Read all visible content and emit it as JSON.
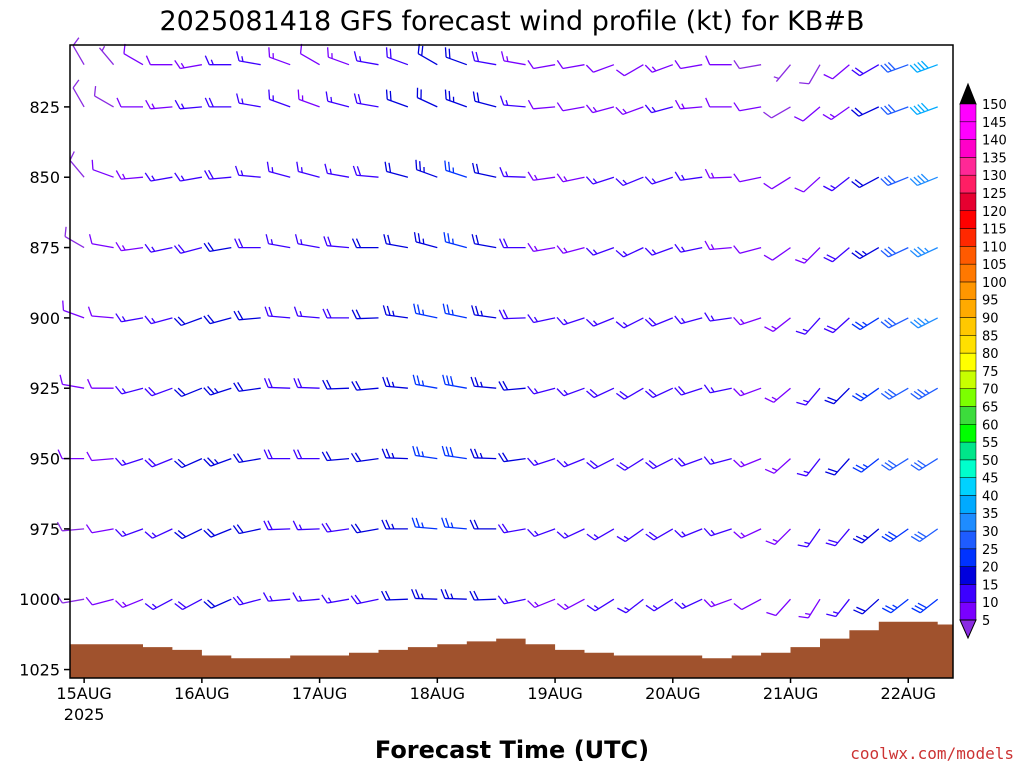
{
  "title": "2025081418 GFS forecast wind profile (kt) for KB#B",
  "credit": "coolwx.com/models",
  "credit_color": "#cc3333",
  "ground_color": "#a0522d",
  "chart_data": {
    "type": "wind-barb-profile",
    "title": "2025081418 GFS forecast wind profile (kt) for KB#B",
    "xlabel": "Forecast Time (UTC)",
    "ylabel": "",
    "y_scale": "pressure (inverted)",
    "ylim": [
      1028,
      803
    ],
    "xlim": [
      -0.12,
      7.38
    ],
    "x_units": "days after 15AUG 00 UTC",
    "x_ticks": [
      {
        "value": 0,
        "label": "15AUG",
        "sub": "2025"
      },
      {
        "value": 1,
        "label": "16AUG",
        "sub": ""
      },
      {
        "value": 2,
        "label": "17AUG",
        "sub": ""
      },
      {
        "value": 3,
        "label": "18AUG",
        "sub": ""
      },
      {
        "value": 4,
        "label": "19AUG",
        "sub": ""
      },
      {
        "value": 5,
        "label": "20AUG",
        "sub": ""
      },
      {
        "value": 6,
        "label": "21AUG",
        "sub": ""
      },
      {
        "value": 7,
        "label": "22AUG",
        "sub": ""
      }
    ],
    "y_ticks": [
      825,
      850,
      875,
      900,
      925,
      950,
      975,
      1000,
      1025
    ],
    "colorbar": {
      "units": "kt",
      "levels": [
        5,
        10,
        15,
        20,
        25,
        30,
        35,
        40,
        45,
        50,
        55,
        60,
        65,
        70,
        75,
        80,
        85,
        90,
        95,
        100,
        105,
        110,
        115,
        120,
        125,
        130,
        135,
        140,
        145,
        150
      ],
      "colors": [
        "#8a2be2",
        "#7a00ff",
        "#3c00ff",
        "#0000dd",
        "#0033ff",
        "#1e5cff",
        "#1e8cff",
        "#00aaff",
        "#00d2ff",
        "#00ffcc",
        "#00e68a",
        "#00ff00",
        "#3cdc3c",
        "#7cff00",
        "#c8ff00",
        "#ffff00",
        "#ffe000",
        "#ffc800",
        "#ffaa00",
        "#ff9600",
        "#ff7800",
        "#ff5a00",
        "#ff2800",
        "#ff0000",
        "#e60030",
        "#ff1e64",
        "#ff2896",
        "#ff00c8",
        "#ff00ff",
        "#000000"
      ]
    },
    "grid": false,
    "surface_pressure": {
      "x": [
        -0.12,
        0,
        0.25,
        0.5,
        0.75,
        1,
        1.25,
        1.5,
        1.75,
        2,
        2.25,
        2.5,
        2.75,
        3,
        3.25,
        3.5,
        3.75,
        4,
        4.25,
        4.5,
        4.75,
        5,
        5.25,
        5.5,
        5.75,
        6,
        6.25,
        6.5,
        6.75,
        7,
        7.25,
        7.38
      ],
      "p": [
        1016,
        1016,
        1016,
        1017,
        1018,
        1020,
        1021,
        1021,
        1020,
        1020,
        1019,
        1018,
        1017,
        1016,
        1015,
        1014,
        1016,
        1018,
        1019,
        1020,
        1020,
        1020,
        1021,
        1020,
        1019,
        1017,
        1014,
        1011,
        1008,
        1008,
        1009,
        1009
      ]
    },
    "series": [
      {
        "pressure": 810,
        "x": [
          0,
          0.25,
          0.5,
          0.75,
          1,
          1.25,
          1.5,
          1.75,
          2,
          2.25,
          2.5,
          2.75,
          3,
          3.25,
          3.5,
          3.75,
          4,
          4.25,
          4.5,
          4.75,
          5,
          5.25,
          5.5,
          5.75,
          6,
          6.25,
          6.5,
          6.75,
          7,
          7.25
        ],
        "dir": [
          330,
          320,
          300,
          270,
          260,
          270,
          280,
          290,
          300,
          290,
          280,
          290,
          300,
          290,
          280,
          280,
          260,
          260,
          250,
          240,
          250,
          260,
          270,
          260,
          220,
          210,
          230,
          240,
          250,
          250
        ],
        "speed": [
          8,
          6,
          10,
          12,
          14,
          16,
          15,
          14,
          12,
          14,
          16,
          18,
          20,
          22,
          18,
          14,
          10,
          10,
          12,
          12,
          14,
          12,
          10,
          8,
          6,
          8,
          12,
          18,
          30,
          40
        ]
      },
      {
        "pressure": 825,
        "x": [
          0,
          0.25,
          0.5,
          0.75,
          1,
          1.25,
          1.5,
          1.75,
          2,
          2.25,
          2.5,
          2.75,
          3,
          3.25,
          3.5,
          3.75,
          4,
          4.25,
          4.5,
          4.75,
          5,
          5.25,
          5.5,
          5.75,
          6,
          6.25,
          6.5,
          6.75,
          7,
          7.25
        ],
        "dir": [
          330,
          300,
          270,
          265,
          265,
          270,
          280,
          290,
          290,
          285,
          280,
          290,
          295,
          290,
          285,
          275,
          265,
          260,
          255,
          250,
          255,
          265,
          270,
          260,
          240,
          230,
          235,
          245,
          250,
          250
        ],
        "speed": [
          8,
          8,
          12,
          14,
          16,
          18,
          16,
          15,
          14,
          16,
          18,
          20,
          22,
          24,
          20,
          16,
          12,
          12,
          14,
          14,
          15,
          14,
          12,
          10,
          8,
          10,
          14,
          20,
          32,
          42
        ]
      },
      {
        "pressure": 850,
        "x": [
          0,
          0.25,
          0.5,
          0.75,
          1,
          1.25,
          1.5,
          1.75,
          2,
          2.25,
          2.5,
          2.75,
          3,
          3.25,
          3.5,
          3.75,
          4,
          4.25,
          4.5,
          4.75,
          5,
          5.25,
          5.5,
          5.75,
          6,
          6.25,
          6.5,
          6.75,
          7,
          7.25
        ],
        "dir": [
          320,
          290,
          265,
          260,
          260,
          265,
          275,
          285,
          285,
          280,
          275,
          285,
          290,
          288,
          282,
          272,
          262,
          258,
          252,
          248,
          252,
          262,
          268,
          258,
          238,
          228,
          232,
          242,
          248,
          248
        ],
        "speed": [
          8,
          10,
          13,
          15,
          17,
          19,
          17,
          16,
          15,
          17,
          19,
          21,
          23,
          25,
          21,
          17,
          13,
          13,
          15,
          15,
          16,
          15,
          13,
          11,
          10,
          12,
          16,
          22,
          30,
          38
        ]
      },
      {
        "pressure": 875,
        "x": [
          0,
          0.25,
          0.5,
          0.75,
          1,
          1.25,
          1.5,
          1.75,
          2,
          2.25,
          2.5,
          2.75,
          3,
          3.25,
          3.5,
          3.75,
          4,
          4.25,
          4.5,
          4.75,
          5,
          5.25,
          5.5,
          5.75,
          6,
          6.25,
          6.5,
          6.75,
          7,
          7.25
        ],
        "dir": [
          300,
          280,
          262,
          258,
          255,
          260,
          270,
          280,
          280,
          275,
          270,
          280,
          285,
          285,
          280,
          270,
          260,
          255,
          250,
          245,
          250,
          258,
          265,
          255,
          235,
          225,
          230,
          240,
          245,
          245
        ],
        "speed": [
          9,
          11,
          14,
          16,
          18,
          20,
          18,
          17,
          16,
          18,
          20,
          22,
          24,
          26,
          22,
          18,
          14,
          14,
          16,
          16,
          17,
          16,
          14,
          12,
          12,
          14,
          18,
          24,
          30,
          36
        ]
      },
      {
        "pressure": 900,
        "x": [
          0,
          0.25,
          0.5,
          0.75,
          1,
          1.25,
          1.5,
          1.75,
          2,
          2.25,
          2.5,
          2.75,
          3,
          3.25,
          3.5,
          3.75,
          4,
          4.25,
          4.5,
          4.75,
          5,
          5.25,
          5.5,
          5.75,
          6,
          6.25,
          6.5,
          6.75,
          7,
          7.25
        ],
        "dir": [
          290,
          275,
          260,
          255,
          250,
          255,
          265,
          275,
          275,
          270,
          268,
          278,
          282,
          282,
          278,
          268,
          258,
          252,
          248,
          243,
          248,
          255,
          262,
          252,
          232,
          222,
          228,
          238,
          243,
          243
        ],
        "speed": [
          10,
          12,
          15,
          17,
          20,
          22,
          20,
          18,
          17,
          19,
          21,
          23,
          25,
          27,
          23,
          19,
          15,
          15,
          17,
          17,
          18,
          17,
          15,
          13,
          13,
          15,
          19,
          25,
          30,
          35
        ]
      },
      {
        "pressure": 925,
        "x": [
          0,
          0.25,
          0.5,
          0.75,
          1,
          1.25,
          1.5,
          1.75,
          2,
          2.25,
          2.5,
          2.75,
          3,
          3.25,
          3.5,
          3.75,
          4,
          4.25,
          4.5,
          4.75,
          5,
          5.25,
          5.5,
          5.75,
          6,
          6.25,
          6.5,
          6.75,
          7,
          7.25
        ],
        "dir": [
          280,
          270,
          255,
          250,
          248,
          252,
          262,
          272,
          272,
          268,
          265,
          275,
          280,
          280,
          275,
          265,
          255,
          250,
          245,
          240,
          245,
          252,
          258,
          250,
          230,
          220,
          225,
          235,
          240,
          240
        ],
        "speed": [
          10,
          12,
          16,
          18,
          21,
          23,
          21,
          19,
          18,
          20,
          22,
          24,
          26,
          28,
          24,
          20,
          16,
          16,
          18,
          18,
          19,
          18,
          16,
          14,
          14,
          16,
          20,
          26,
          30,
          34
        ]
      },
      {
        "pressure": 950,
        "x": [
          0,
          0.25,
          0.5,
          0.75,
          1,
          1.25,
          1.5,
          1.75,
          2,
          2.25,
          2.5,
          2.75,
          3,
          3.25,
          3.5,
          3.75,
          4,
          4.25,
          4.5,
          4.75,
          5,
          5.25,
          5.5,
          5.75,
          6,
          6.25,
          6.5,
          6.75,
          7,
          7.25
        ],
        "dir": [
          270,
          265,
          252,
          248,
          246,
          250,
          260,
          270,
          270,
          265,
          262,
          272,
          278,
          278,
          272,
          262,
          252,
          248,
          243,
          238,
          243,
          250,
          255,
          248,
          228,
          218,
          222,
          232,
          238,
          238
        ],
        "speed": [
          10,
          12,
          16,
          18,
          21,
          23,
          21,
          19,
          18,
          20,
          22,
          24,
          26,
          28,
          24,
          20,
          16,
          16,
          18,
          18,
          19,
          18,
          16,
          14,
          14,
          16,
          20,
          26,
          30,
          32
        ]
      },
      {
        "pressure": 975,
        "x": [
          0,
          0.25,
          0.5,
          0.75,
          1,
          1.25,
          1.5,
          1.75,
          2,
          2.25,
          2.5,
          2.75,
          3,
          3.25,
          3.5,
          3.75,
          4,
          4.25,
          4.5,
          4.75,
          5,
          5.25,
          5.5,
          5.75,
          6,
          6.25,
          6.5,
          6.75,
          7,
          7.25
        ],
        "dir": [
          265,
          260,
          250,
          245,
          244,
          248,
          258,
          268,
          268,
          262,
          260,
          270,
          275,
          275,
          270,
          260,
          250,
          245,
          240,
          235,
          240,
          248,
          252,
          245,
          225,
          215,
          220,
          230,
          235,
          235
        ],
        "speed": [
          9,
          11,
          15,
          17,
          20,
          22,
          20,
          18,
          17,
          19,
          21,
          23,
          25,
          26,
          22,
          18,
          15,
          15,
          17,
          17,
          18,
          17,
          15,
          13,
          13,
          15,
          19,
          24,
          28,
          30
        ]
      },
      {
        "pressure": 1000,
        "x": [
          0,
          0.25,
          0.5,
          0.75,
          1,
          1.25,
          1.5,
          1.75,
          2,
          2.25,
          2.5,
          2.75,
          3,
          3.25,
          3.5,
          3.75,
          4,
          4.25,
          4.5,
          4.75,
          5,
          5.25,
          5.5,
          5.75,
          6,
          6.25,
          6.5,
          6.75,
          7,
          7.25
        ],
        "dir": [
          260,
          255,
          248,
          242,
          242,
          246,
          255,
          265,
          265,
          260,
          258,
          268,
          272,
          272,
          268,
          258,
          248,
          242,
          238,
          232,
          238,
          245,
          250,
          242,
          222,
          212,
          218,
          228,
          232,
          232
        ],
        "speed": [
          8,
          10,
          13,
          15,
          18,
          20,
          18,
          16,
          15,
          17,
          19,
          21,
          23,
          24,
          20,
          16,
          13,
          13,
          15,
          15,
          16,
          15,
          13,
          11,
          11,
          13,
          17,
          22,
          26,
          28
        ]
      }
    ]
  }
}
